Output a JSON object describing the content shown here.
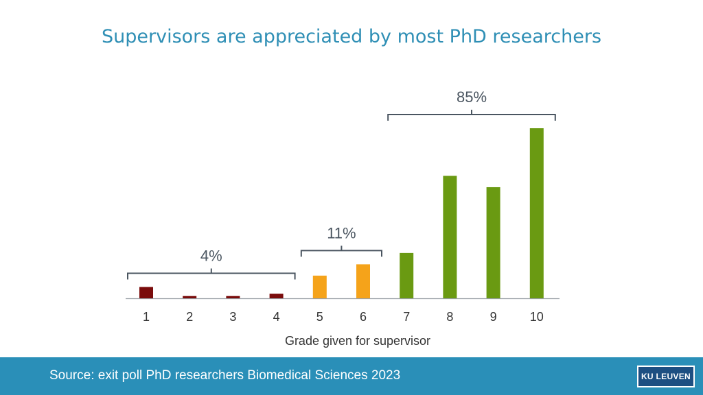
{
  "title": "Supervisors are appreciated by most PhD researchers",
  "footer": {
    "source": "Source: exit poll PhD researchers Biomedical Sciences 2023",
    "logo": "KU LEUVEN"
  },
  "colors": {
    "low": "#7a0c0c",
    "mid": "#f5a31a",
    "high": "#6a9a12",
    "title": "#2f8fb5",
    "footer_bg": "#2a8fb8",
    "bracket": "#4a5560"
  },
  "chart_data": {
    "type": "bar",
    "xlabel": "Grade given for supervisor",
    "ylabel": "",
    "categories": [
      "1",
      "2",
      "3",
      "4",
      "5",
      "6",
      "7",
      "8",
      "9",
      "10"
    ],
    "values": [
      1.0,
      0.2,
      0.2,
      0.4,
      2.0,
      3.0,
      4.0,
      10.8,
      9.8,
      15.0
    ],
    "ylim": [
      0,
      15.5
    ],
    "grid": false,
    "groups": [
      {
        "label": "4%",
        "from": 0,
        "to": 3,
        "color_key": "low"
      },
      {
        "label": "11%",
        "from": 4,
        "to": 5,
        "color_key": "mid"
      },
      {
        "label": "85%",
        "from": 6,
        "to": 9,
        "color_key": "high"
      }
    ]
  }
}
